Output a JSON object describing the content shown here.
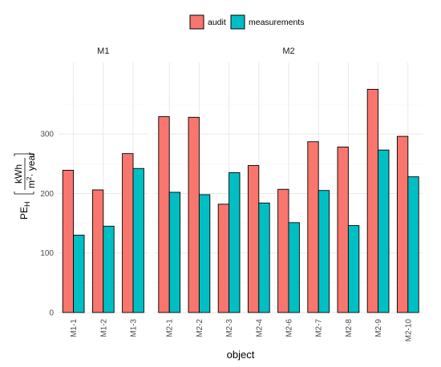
{
  "chart_data": {
    "type": "bar",
    "xlabel": "object",
    "ylabel": {
      "main": "PE",
      "sub": "H",
      "num": "kWh",
      "den": "m",
      "den_sup": "2",
      "den_rest": "· year"
    },
    "ylim": [
      0,
      420
    ],
    "yticks": [
      0,
      100,
      200,
      300
    ],
    "legend": {
      "position": "top",
      "entries": [
        {
          "name": "audit",
          "color": "#F8766D"
        },
        {
          "name": "measurements",
          "color": "#00BFC4"
        }
      ]
    },
    "grid": true,
    "facets": [
      {
        "label": "M1",
        "categories": [
          "M1-1",
          "M1-2",
          "M1-3"
        ],
        "series": [
          {
            "name": "audit",
            "values": [
              239,
              206,
              267
            ]
          },
          {
            "name": "measurements",
            "values": [
              130,
              145,
              242
            ]
          }
        ]
      },
      {
        "label": "M2",
        "categories": [
          "M2-1",
          "M2-2",
          "M2-3",
          "M2-4",
          "M2-6",
          "M2-7",
          "M2-8",
          "M2-9",
          "M2-10"
        ],
        "series": [
          {
            "name": "audit",
            "values": [
              329,
              328,
              182,
              247,
              207,
              287,
              278,
              375,
              296
            ]
          },
          {
            "name": "measurements",
            "values": [
              202,
              198,
              235,
              184,
              151,
              205,
              146,
              273,
              228
            ]
          }
        ]
      }
    ]
  }
}
